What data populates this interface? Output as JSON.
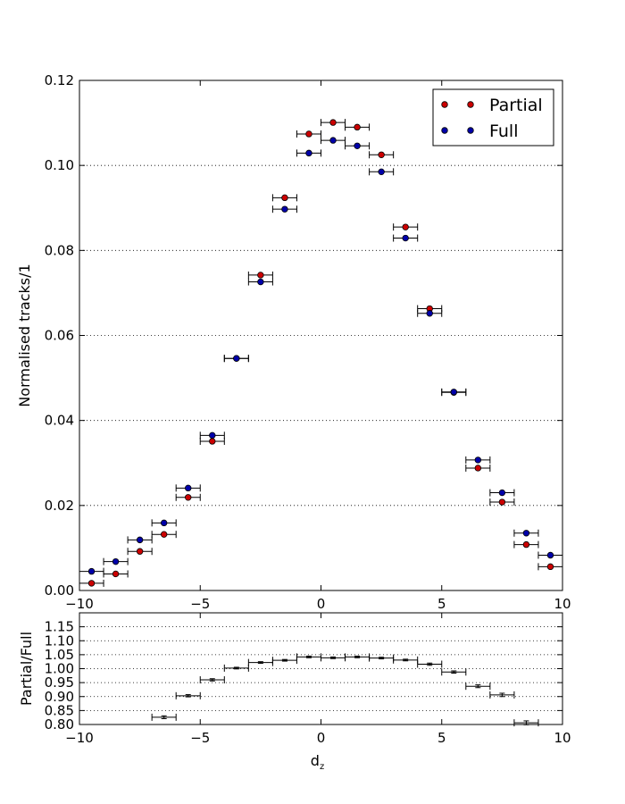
{
  "chart_data": [
    {
      "type": "scatter",
      "title": "",
      "xlabel": "",
      "ylabel": "Normalised tracks/1",
      "xlim": [
        -10,
        10
      ],
      "ylim": [
        0,
        0.12
      ],
      "xticks": [
        "−10",
        "−5",
        "0",
        "5",
        "10"
      ],
      "xtick_values": [
        -10,
        -5,
        0,
        5,
        10
      ],
      "yticks": [
        "0.00",
        "0.02",
        "0.04",
        "0.06",
        "0.08",
        "0.10",
        "0.12"
      ],
      "ytick_values": [
        0,
        0.02,
        0.04,
        0.06,
        0.08,
        0.1,
        0.12
      ],
      "grid": "horizontal-dotted",
      "legend": "top-right",
      "x": [
        -9.5,
        -8.5,
        -7.5,
        -6.5,
        -5.5,
        -4.5,
        -3.5,
        -2.5,
        -1.5,
        -0.5,
        0.5,
        1.5,
        2.5,
        3.5,
        4.5,
        5.5,
        6.5,
        7.5,
        8.5,
        9.5
      ],
      "x_error": 0.5,
      "series": [
        {
          "name": "Partial",
          "color": "#cc0000",
          "values": [
            0.0017,
            0.0039,
            0.0092,
            0.0132,
            0.0219,
            0.0351,
            0.0546,
            0.0742,
            0.0924,
            0.1074,
            0.1101,
            0.109,
            0.1025,
            0.0855,
            0.0663,
            0.0466,
            0.0288,
            0.0208,
            0.0108,
            0.0056
          ]
        },
        {
          "name": "Full",
          "color": "#0000aa",
          "values": [
            0.0045,
            0.0068,
            0.0119,
            0.0159,
            0.0241,
            0.0365,
            0.0546,
            0.0726,
            0.0897,
            0.1029,
            0.1059,
            0.1046,
            0.0985,
            0.0829,
            0.0652,
            0.0467,
            0.0307,
            0.023,
            0.0135,
            0.0083
          ]
        }
      ]
    },
    {
      "type": "scatter",
      "title": "",
      "xlabel": "d",
      "xlabel_subscript": "z",
      "ylabel": "Partial/Full",
      "xlim": [
        -10,
        10
      ],
      "ylim": [
        0.8,
        1.2
      ],
      "xticks": [
        "−10",
        "−5",
        "0",
        "5",
        "10"
      ],
      "xtick_values": [
        -10,
        -5,
        0,
        5,
        10
      ],
      "yticks": [
        "0.80",
        "0.85",
        "0.90",
        "0.95",
        "1.00",
        "1.05",
        "1.10",
        "1.15"
      ],
      "ytick_values": [
        0.8,
        0.85,
        0.9,
        0.95,
        1.0,
        1.05,
        1.1,
        1.15
      ],
      "grid": "horizontal-dotted",
      "x": [
        -6.5,
        -5.5,
        -4.5,
        -3.5,
        -2.5,
        -1.5,
        -0.5,
        0.5,
        1.5,
        2.5,
        3.5,
        4.5,
        5.5,
        6.5,
        7.5,
        8.5
      ],
      "x_error": 0.5,
      "series": [
        {
          "name": "",
          "color": "#000000",
          "values": [
            0.826,
            0.903,
            0.96,
            1.002,
            1.022,
            1.03,
            1.042,
            1.039,
            1.042,
            1.038,
            1.031,
            1.016,
            0.988,
            0.937,
            0.906,
            0.806
          ],
          "y_error": [
            0.005,
            0.004,
            0.004,
            0.003,
            0.003,
            0.003,
            0.003,
            0.003,
            0.003,
            0.003,
            0.003,
            0.004,
            0.004,
            0.005,
            0.006,
            0.007
          ]
        }
      ]
    }
  ]
}
